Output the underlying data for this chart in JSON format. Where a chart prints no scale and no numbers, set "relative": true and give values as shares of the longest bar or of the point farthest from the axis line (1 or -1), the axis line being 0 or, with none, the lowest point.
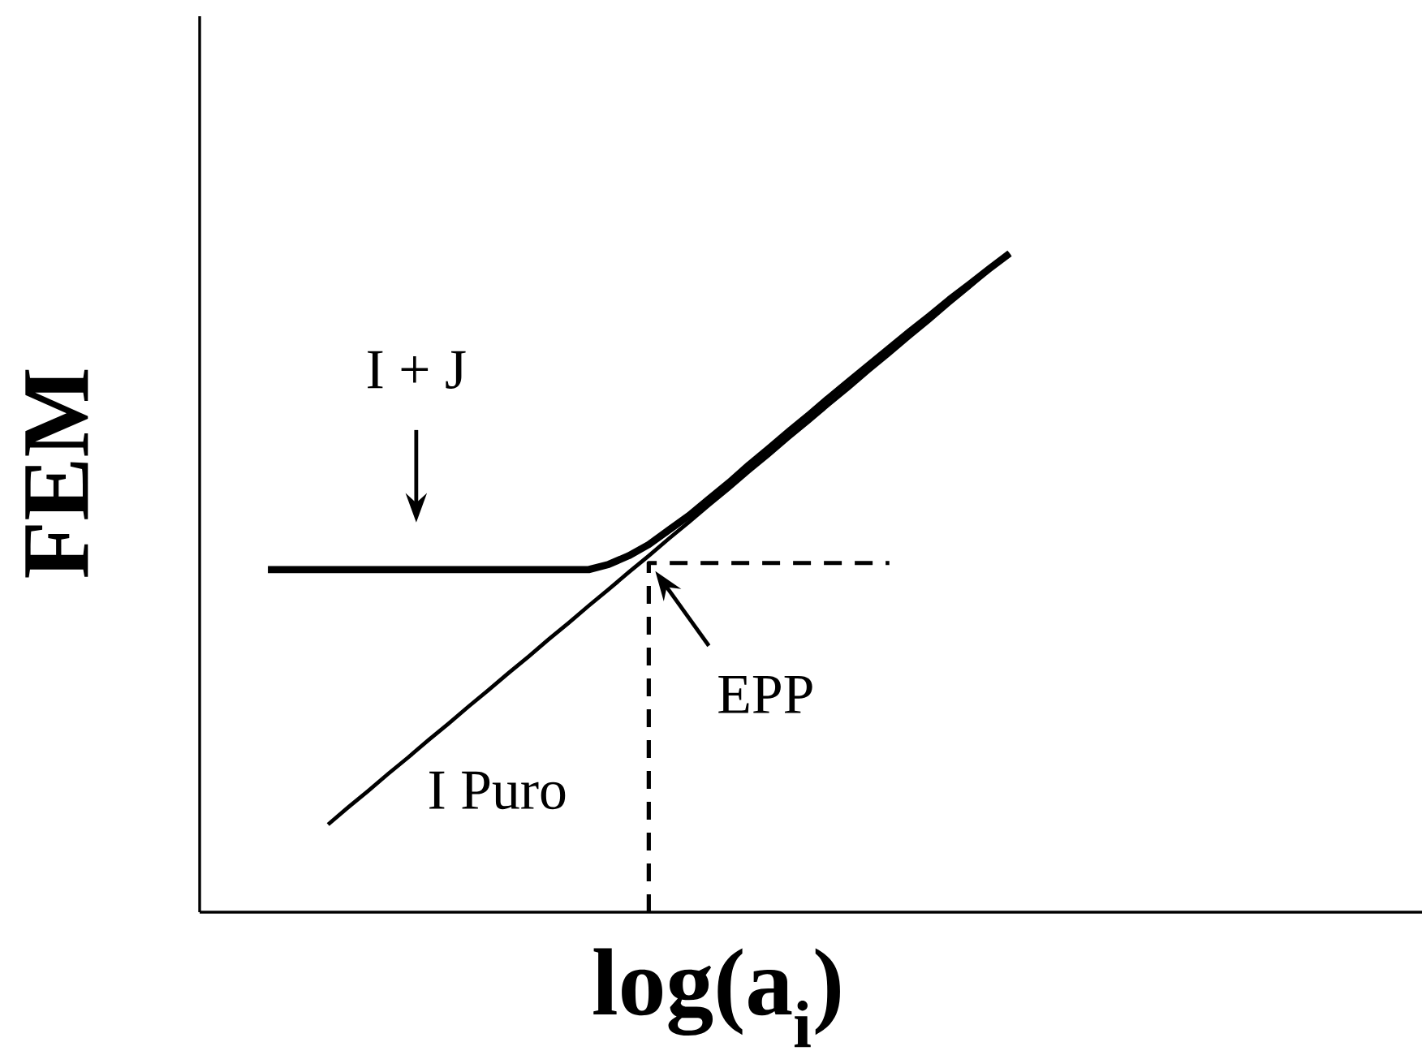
{
  "chart_data": {
    "type": "line",
    "xlabel": "log(a$_{i}$)",
    "ylabel": "FEM",
    "relative": true,
    "categories": [
      null,
      null,
      null,
      null,
      null,
      null,
      null,
      null,
      null,
      null,
      null,
      null,
      null,
      null,
      null,
      null,
      null,
      null,
      null,
      null,
      null,
      null,
      null,
      null,
      null,
      null,
      null,
      null,
      null,
      null,
      null,
      null,
      null,
      null,
      null,
      null,
      null,
      null
    ],
    "series": [
      {
        "name": "I Puro",
        "color": "#000000",
        "values": [
          null,
          null,
          null,
          0.133,
          0.159,
          0.184,
          0.21,
          0.235,
          0.261,
          0.286,
          0.312,
          0.337,
          0.363,
          0.388,
          0.414,
          0.439,
          0.465,
          0.49,
          0.516,
          0.541,
          0.567,
          0.592,
          0.618,
          0.643,
          0.669,
          0.694,
          0.72,
          0.745,
          0.771,
          0.796,
          0.822,
          0.847,
          0.873,
          0.898,
          0.924,
          0.949,
          0.975,
          1.0
        ]
      },
      {
        "color": "#000000",
        "values": [
          0.52,
          0.52,
          0.52,
          0.52,
          0.52,
          0.52,
          0.52,
          0.52,
          0.52,
          0.52,
          0.52,
          0.52,
          0.52,
          0.52,
          0.52,
          0.52,
          0.52,
          0.528,
          0.541,
          0.558,
          0.58,
          0.602,
          0.627,
          0.652,
          0.679,
          0.704,
          0.73,
          0.755,
          0.781,
          0.806,
          0.831,
          0.856,
          0.881,
          0.905,
          0.93,
          0.953,
          0.977,
          1.0
        ]
      },
      {
        "type": "step",
        "color": "#000000",
        "line_style": "dashed",
        "values": [
          null,
          null,
          null,
          null,
          null,
          null,
          null,
          null,
          null,
          null,
          null,
          null,
          null,
          null,
          null,
          null,
          null,
          null,
          null,
          0,
          0.53,
          0.53,
          0.53,
          0.53,
          0.53,
          0.53,
          0.53,
          0.53,
          0.53,
          0.53,
          0.53,
          0.53,
          null,
          null,
          null,
          null,
          null,
          null
        ]
      }
    ],
    "annotations": [
      "I + J",
      {
        "text": "EPP",
        "y": 0.53
      }
    ]
  }
}
